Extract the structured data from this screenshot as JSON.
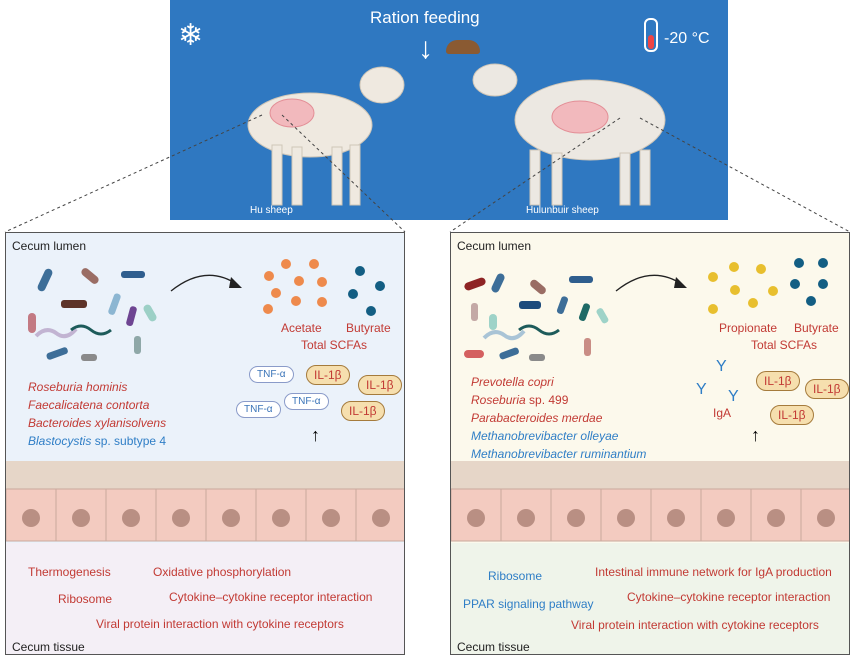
{
  "banner": {
    "title": "Ration feeding",
    "temperature": "-20 °C",
    "left_animal": "Hu sheep",
    "right_animal": "Hulunbuir sheep",
    "colors": {
      "background": "#2f78c1"
    },
    "icons": [
      "snowflake-icon",
      "thermometer-icon",
      "down-arrow-icon",
      "feed-icon"
    ]
  },
  "left": {
    "lumen_label": "Cecum lumen",
    "tissue_label": "Cecum tissue",
    "scfa": [
      "Acetate",
      "Butyrate"
    ],
    "total_scfa": "Total SCFAs",
    "species": [
      {
        "italic": "Roseburia hominis",
        "rest": "",
        "color": "red"
      },
      {
        "italic": "Faecalicatena contorta",
        "rest": "",
        "color": "red"
      },
      {
        "italic": "Bacteroides xylanisolvens",
        "rest": "",
        "color": "red"
      },
      {
        "italic": "Blastocystis",
        "rest": " sp. subtype 4",
        "color": "blue"
      }
    ],
    "cytokines": {
      "tnf": "TNF-α",
      "il": "IL-1β"
    },
    "pathways": [
      "Thermogenesis",
      "Oxidative phosphorylation",
      "Ribosome",
      "Cytokine–cytokine receptor interaction",
      "Viral protein interaction with cytokine receptors"
    ]
  },
  "right": {
    "lumen_label": "Cecum lumen",
    "tissue_label": "Cecum tissue",
    "scfa": [
      "Propionate",
      "Butyrate"
    ],
    "total_scfa": "Total SCFAs",
    "species": [
      {
        "italic": "Prevotella copri",
        "rest": "",
        "color": "red"
      },
      {
        "italic": "Roseburia",
        "rest": " sp. 499",
        "color": "red"
      },
      {
        "italic": "Parabacteroides merdae",
        "rest": "",
        "color": "red"
      },
      {
        "italic": "Methanobrevibacter olleyae",
        "rest": "",
        "color": "blue"
      },
      {
        "italic": "Methanobrevibacter ruminantium",
        "rest": "",
        "color": "blue"
      }
    ],
    "iga": "IgA",
    "cytokines": {
      "il": "IL-1β"
    },
    "pathways": [
      "Ribosome",
      "Intestinal immune network for IgA production",
      "PPAR signaling pathway",
      "Cytokine–cytokine receptor interaction",
      "Viral protein interaction with cytokine receptors"
    ]
  },
  "colors": {
    "up": "#c23a34",
    "down": "#2f7ec6"
  }
}
